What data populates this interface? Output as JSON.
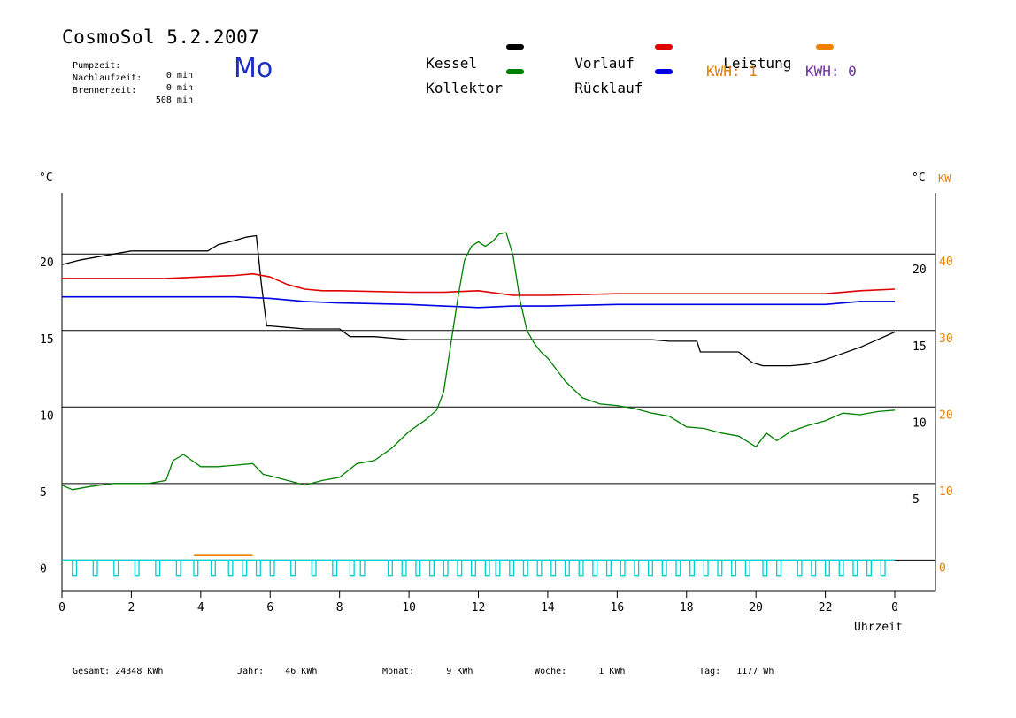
{
  "header": {
    "title": "CosmoSol 5.2.2007",
    "weekday": "Mo",
    "info": [
      {
        "label": "Pumpzeit:",
        "value": "0 min"
      },
      {
        "label": "Nachlaufzeit:",
        "value": "0 min"
      },
      {
        "label": "Brennerzeit:",
        "value": "508 min"
      }
    ]
  },
  "legend": {
    "items": [
      {
        "label": "Kessel",
        "color": "#000000"
      },
      {
        "label": "Vorlauf",
        "color": "#e00000"
      },
      {
        "label": "Leistung",
        "color": "#f08000"
      },
      {
        "label": "Kollektor",
        "color": "#008000"
      },
      {
        "label": "Rücklauf",
        "color": "#0000e0"
      }
    ],
    "kwh": [
      {
        "label": "KWH: 1",
        "color": "#e08000"
      },
      {
        "label": "KWH: 0",
        "color": "#7030a0"
      }
    ]
  },
  "footer": [
    {
      "label": "Gesamt:",
      "value": "24348 KWh"
    },
    {
      "label": "Jahr:",
      "value": "46 KWh"
    },
    {
      "label": "Monat:",
      "value": "9 KWh"
    },
    {
      "label": "Woche:",
      "value": "1 KWh"
    },
    {
      "label": "Tag:",
      "value": "1177 Wh"
    }
  ],
  "chart_data": {
    "type": "line",
    "xlabel": "Uhrzeit",
    "ylabel_left": "°C",
    "ylabel_right": "°C",
    "ylabel_right2": "KW",
    "x_ticks": [
      "0",
      "2",
      "4",
      "6",
      "8",
      "10",
      "12",
      "14",
      "16",
      "18",
      "20",
      "22",
      "0"
    ],
    "y_left_ticks": [
      "0",
      "5",
      "10",
      "15",
      "20"
    ],
    "y_right_ticks": [
      "5",
      "10",
      "15",
      "20"
    ],
    "y_kw_ticks": [
      "0",
      "10",
      "20",
      "30",
      "40"
    ],
    "xlim": [
      0,
      24
    ],
    "ylim": [
      -2,
      24
    ],
    "grid_y": [
      0,
      5,
      10,
      15,
      20
    ],
    "series": [
      {
        "name": "Kessel",
        "color": "#000000",
        "x": [
          0,
          0.5,
          1,
          1.5,
          2,
          2.2,
          4.2,
          4.5,
          5,
          5.3,
          5.6,
          5.75,
          5.9,
          6,
          6.5,
          7,
          8,
          8.3,
          9,
          9.5,
          10,
          11,
          12,
          13,
          14,
          15,
          16,
          17,
          17.5,
          17.8,
          18,
          18.3,
          18.4,
          19,
          19.5,
          19.9,
          20.2,
          21,
          21.5,
          22,
          22.5,
          23,
          23.5,
          24
        ],
        "y": [
          19.3,
          19.6,
          19.8,
          20,
          20.2,
          20.2,
          20.2,
          20.6,
          20.9,
          21.1,
          21.2,
          18,
          15.3,
          15.3,
          15.2,
          15.1,
          15.1,
          14.6,
          14.6,
          14.5,
          14.4,
          14.4,
          14.4,
          14.4,
          14.4,
          14.4,
          14.4,
          14.4,
          14.3,
          14.3,
          14.3,
          14.3,
          13.6,
          13.6,
          13.6,
          12.9,
          12.7,
          12.7,
          12.8,
          13.1,
          13.5,
          13.9,
          14.4,
          14.9
        ]
      },
      {
        "name": "Vorlauf",
        "color": "#e00000",
        "x": [
          0,
          1,
          2,
          3,
          4,
          5,
          5.5,
          6,
          6.5,
          7,
          7.5,
          8,
          10,
          11,
          12,
          13,
          14,
          16,
          18,
          20,
          22,
          23,
          24
        ],
        "y": [
          18.4,
          18.4,
          18.4,
          18.4,
          18.5,
          18.6,
          18.7,
          18.5,
          18,
          17.7,
          17.6,
          17.6,
          17.5,
          17.5,
          17.6,
          17.3,
          17.3,
          17.4,
          17.4,
          17.4,
          17.4,
          17.6,
          17.7
        ]
      },
      {
        "name": "Rücklauf",
        "color": "#0000e0",
        "x": [
          0,
          1,
          2,
          3,
          4,
          5,
          6,
          7,
          8,
          10,
          12,
          13,
          14,
          16,
          18,
          20,
          22,
          23,
          24
        ],
        "y": [
          17.2,
          17.2,
          17.2,
          17.2,
          17.2,
          17.2,
          17.1,
          16.9,
          16.8,
          16.7,
          16.5,
          16.6,
          16.6,
          16.7,
          16.7,
          16.7,
          16.7,
          16.9,
          16.9
        ]
      },
      {
        "name": "Kollektor",
        "color": "#008000",
        "x": [
          0,
          0.3,
          0.8,
          1.5,
          2,
          2.5,
          3,
          3.2,
          3.5,
          4,
          4.5,
          5,
          5.5,
          5.8,
          6,
          6.5,
          7,
          7.5,
          8,
          8.5,
          9,
          9.5,
          10,
          10.5,
          10.8,
          11,
          11.2,
          11.4,
          11.6,
          11.8,
          12,
          12.2,
          12.4,
          12.6,
          12.8,
          13,
          13.2,
          13.4,
          13.6,
          13.8,
          14,
          14.5,
          15,
          15.5,
          16,
          16.5,
          17,
          17.5,
          18,
          18.5,
          19,
          19.5,
          20,
          20.3,
          20.6,
          21,
          21.5,
          22,
          22.5,
          23,
          23.5,
          24
        ],
        "y": [
          4.9,
          4.6,
          4.8,
          5,
          5,
          5,
          5.2,
          6.5,
          6.9,
          6.1,
          6.1,
          6.2,
          6.3,
          5.6,
          5.5,
          5.2,
          4.9,
          5.2,
          5.4,
          6.3,
          6.5,
          7.3,
          8.4,
          9.2,
          9.8,
          11,
          14,
          17,
          19.6,
          20.5,
          20.8,
          20.5,
          20.8,
          21.3,
          21.4,
          19.9,
          17,
          15,
          14.2,
          13.6,
          13.2,
          11.7,
          10.6,
          10.2,
          10.1,
          9.9,
          9.6,
          9.4,
          8.7,
          8.6,
          8.3,
          8.1,
          7.4,
          8.3,
          7.8,
          8.4,
          8.8,
          9.1,
          9.6,
          9.5,
          9.7,
          9.8
        ]
      },
      {
        "name": "Leistung",
        "color": "#f08000",
        "x": [
          3.8,
          5.5
        ],
        "y": [
          0.3,
          0.3
        ]
      }
    ],
    "pulses": {
      "name": "Pumpe",
      "color": "#00d0d0",
      "x_starts": [
        0.3,
        0.9,
        1.5,
        2.1,
        2.7,
        3.3,
        3.8,
        4.3,
        4.8,
        5.2,
        5.6,
        6,
        6.6,
        7.2,
        7.8,
        8.3,
        8.6,
        9.4,
        9.8,
        10.2,
        10.6,
        11,
        11.4,
        11.8,
        12.2,
        12.5,
        12.9,
        13.3,
        13.7,
        14.1,
        14.5,
        14.9,
        15.3,
        15.7,
        16.1,
        16.5,
        16.9,
        17.3,
        17.7,
        18.1,
        18.5,
        18.9,
        19.3,
        19.7,
        20.2,
        20.6,
        21.2,
        21.6,
        22,
        22.4,
        22.8,
        23.2,
        23.6
      ],
      "width_h": 0.12,
      "low": -1,
      "high": 0
    }
  }
}
